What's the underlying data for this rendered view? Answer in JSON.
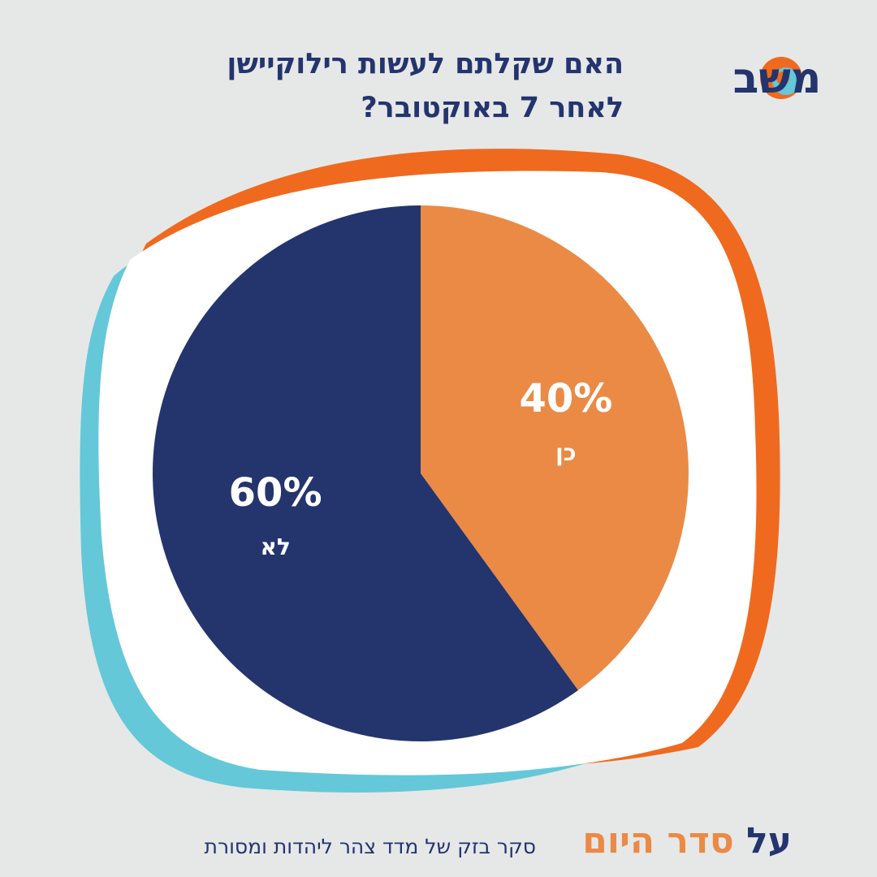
{
  "title": {
    "line1": "האם שקלתם לעשות רילוקיישן",
    "line2": "לאחר 7 באוקטובר?"
  },
  "logo": {
    "text": "משב"
  },
  "chart_data": {
    "type": "pie",
    "slices": [
      {
        "label": "כן",
        "value": 40,
        "display": "40%",
        "color": "#ea8a45"
      },
      {
        "label": "לא",
        "value": 60,
        "display": "60%",
        "color": "#24346d"
      }
    ],
    "start": "top",
    "direction": "clockwise"
  },
  "footer": {
    "brand_part_a": "על",
    "brand_part_b": "סדר היום",
    "note": "סקר בזק של מדד צהר ליהדות ומסורת"
  },
  "colors": {
    "background": "#e6e7e7",
    "frame_orange": "#ef6a1e",
    "frame_cyan": "#64c8d9",
    "frame_white": "#ffffff",
    "navy": "#24346d",
    "orange": "#ea8a45"
  }
}
